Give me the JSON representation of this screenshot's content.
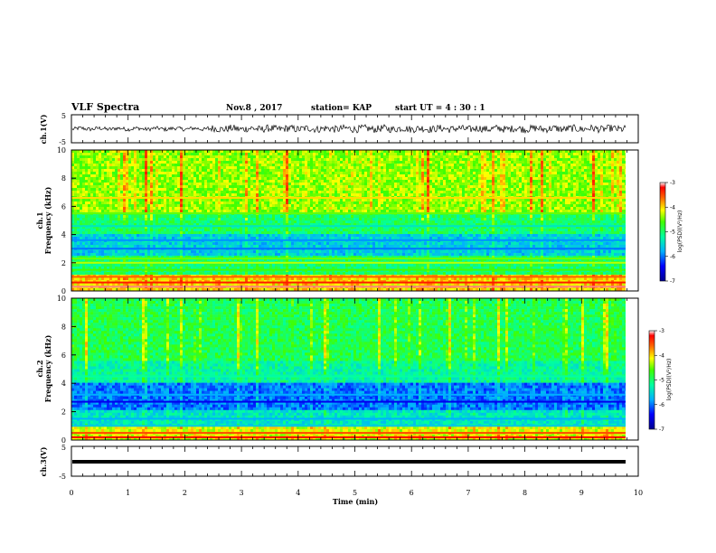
{
  "header": {
    "title": "VLF Spectra",
    "date": "Nov.8 , 2017",
    "station": "station= KAP",
    "start_ut": "start UT = 4 : 30 : 1"
  },
  "chart_data": [
    {
      "type": "line",
      "panel": "ch1-waveform",
      "ylabel": "ch.1(V)",
      "ylim": [
        -5,
        5
      ],
      "yticks": [
        "5",
        "-5"
      ],
      "xlim": [
        0,
        10
      ],
      "note": "noisy waveform, roughly -1..1 V, larger bursts after ~2.5 min"
    },
    {
      "type": "heatmap",
      "panel": "ch1-spectrogram",
      "ylabel": "ch.1 Frequency (kHz)",
      "ylim": [
        0,
        10
      ],
      "yticks": [
        "0",
        "2",
        "4",
        "6",
        "8",
        "10"
      ],
      "xlim": [
        0,
        10
      ],
      "colorbar": {
        "label": "log(PSD)(V²/Hz)",
        "ticks": [
          "-3",
          "-4",
          "-5",
          "-6",
          "-7"
        ],
        "range": [
          -7,
          -3
        ]
      },
      "bands_khz": [
        {
          "f": 0.3,
          "level": -3.1
        },
        {
          "f": 0.6,
          "level": -3.3
        },
        {
          "f": 1.0,
          "level": -3.6
        },
        {
          "f": 1.5,
          "level": -4.6
        },
        {
          "f": 2.0,
          "level": -4.3
        },
        {
          "f": 2.3,
          "level": -4.5
        },
        {
          "f": 3.0,
          "level": -6.0
        },
        {
          "f": 3.6,
          "level": -5.9
        },
        {
          "f": 4.6,
          "level": -5.4
        },
        {
          "f": 5.5,
          "level": -4.5
        },
        {
          "f": 6.6,
          "level": -4.0
        }
      ]
    },
    {
      "type": "heatmap",
      "panel": "ch2-spectrogram",
      "ylabel": "ch.2 Frequency (kHz)",
      "ylim": [
        0,
        10
      ],
      "yticks": [
        "0",
        "2",
        "4",
        "6",
        "8",
        "10"
      ],
      "xlim": [
        0,
        10
      ],
      "colorbar": {
        "label": "log(PSD)(V²/Hz)",
        "ticks": [
          "-3",
          "-4",
          "-5",
          "-6",
          "-7"
        ],
        "range": [
          -7,
          -3
        ]
      },
      "bands_khz": [
        {
          "f": 0.2,
          "level": -3.2
        },
        {
          "f": 0.5,
          "level": -3.5
        },
        {
          "f": 1.0,
          "level": -5.6
        },
        {
          "f": 1.5,
          "level": -5.8
        },
        {
          "f": 2.7,
          "level": -6.5
        },
        {
          "f": 3.2,
          "level": -5.8
        },
        {
          "f": 4.5,
          "level": -5.2
        }
      ]
    },
    {
      "type": "line",
      "panel": "ch3-waveform",
      "ylabel": "ch.3(V)",
      "ylim": [
        -5,
        5
      ],
      "yticks": [
        "5",
        "-5"
      ],
      "xlim": [
        0,
        10
      ],
      "xlabel": "Time (min)",
      "xticks": [
        "0",
        "1",
        "2",
        "3",
        "4",
        "5",
        "6",
        "7",
        "8",
        "9",
        "10"
      ],
      "note": "flat thick line at about 0 V"
    }
  ]
}
